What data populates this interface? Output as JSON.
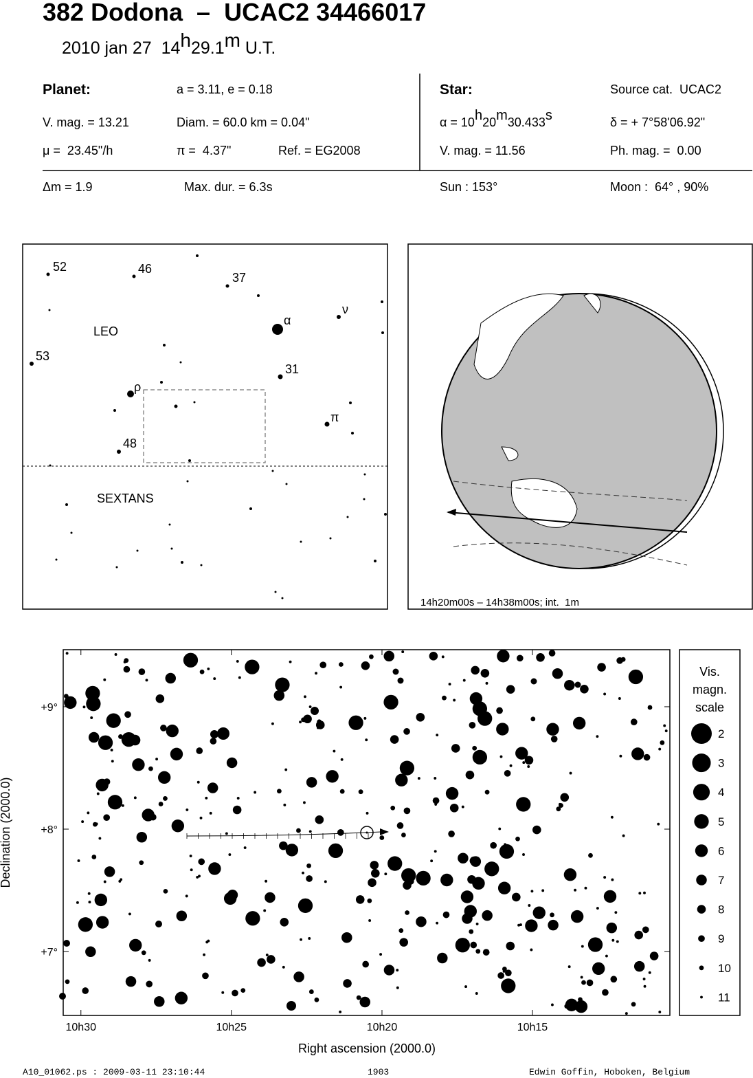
{
  "header": {
    "title": "382 Dodona  –  UCAC2 34466017",
    "datetime": [
      "2010 jan 27  14",
      "h",
      "29.1",
      "m",
      " U.T."
    ]
  },
  "info": {
    "planet_label": "Planet:",
    "orbit": "a = 3.11, e = 0.18",
    "planet_vmag": "V. mag. = 13.21",
    "diameter": "Diam. = 60.0 km = 0.04\"",
    "motion": "μ =  23.45\"/h",
    "parallax": "π =  4.37\"",
    "reference": "Ref. = EG2008",
    "star_label": "Star:",
    "source": "Source cat.  UCAC2",
    "ra": [
      "α = 10",
      "h",
      "20",
      "m",
      "30.433",
      "s"
    ],
    "dec": "δ = + 7°58'06.92\"",
    "star_vmag": "V. mag. = 11.56",
    "star_phmag": "Ph. mag. =  0.00",
    "delta_mag": "Δm = 1.9",
    "max_duration": "Max. dur. = 6.3s",
    "sun": "Sun : 153°",
    "moon": "Moon :  64° , 90%"
  },
  "finder": {
    "labels": [
      "52",
      "46",
      "37",
      "ν",
      "α",
      "53",
      "31",
      "ρ",
      "π",
      "48"
    ],
    "constellations": [
      "LEO",
      "SEXTANS"
    ]
  },
  "globe": {
    "caption": "14h20m00s – 14h38m00s; int.  1m"
  },
  "chart_data": {
    "type": "star-chart",
    "x_label": "Right ascension (2000.0)",
    "y_label": "Declination (2000.0)",
    "xlim": [
      10.5098,
      10.1739
    ],
    "xticks": [
      {
        "value": 10.5,
        "label": "10h30"
      },
      {
        "value": 10.4167,
        "label": "10h25"
      },
      {
        "value": 10.3333,
        "label": "10h20"
      },
      {
        "value": 10.25,
        "label": "10h15"
      }
    ],
    "ylim": [
      6.478,
      9.466
    ],
    "yticks": [
      {
        "value": 7,
        "label": "+7°"
      },
      {
        "value": 8,
        "label": "+8°"
      },
      {
        "value": 9,
        "label": "+9°"
      }
    ],
    "legend_title": [
      "Vis.",
      "magn.",
      "scale"
    ],
    "legend_values": [
      2,
      3,
      4,
      5,
      6,
      7,
      8,
      9,
      10,
      11
    ]
  },
  "footer": {
    "file": "A10_01062.ps : 2009-03-11 23:10:44",
    "number": "1903",
    "author": "Edwin Goffin, Hoboken, Belgium"
  }
}
